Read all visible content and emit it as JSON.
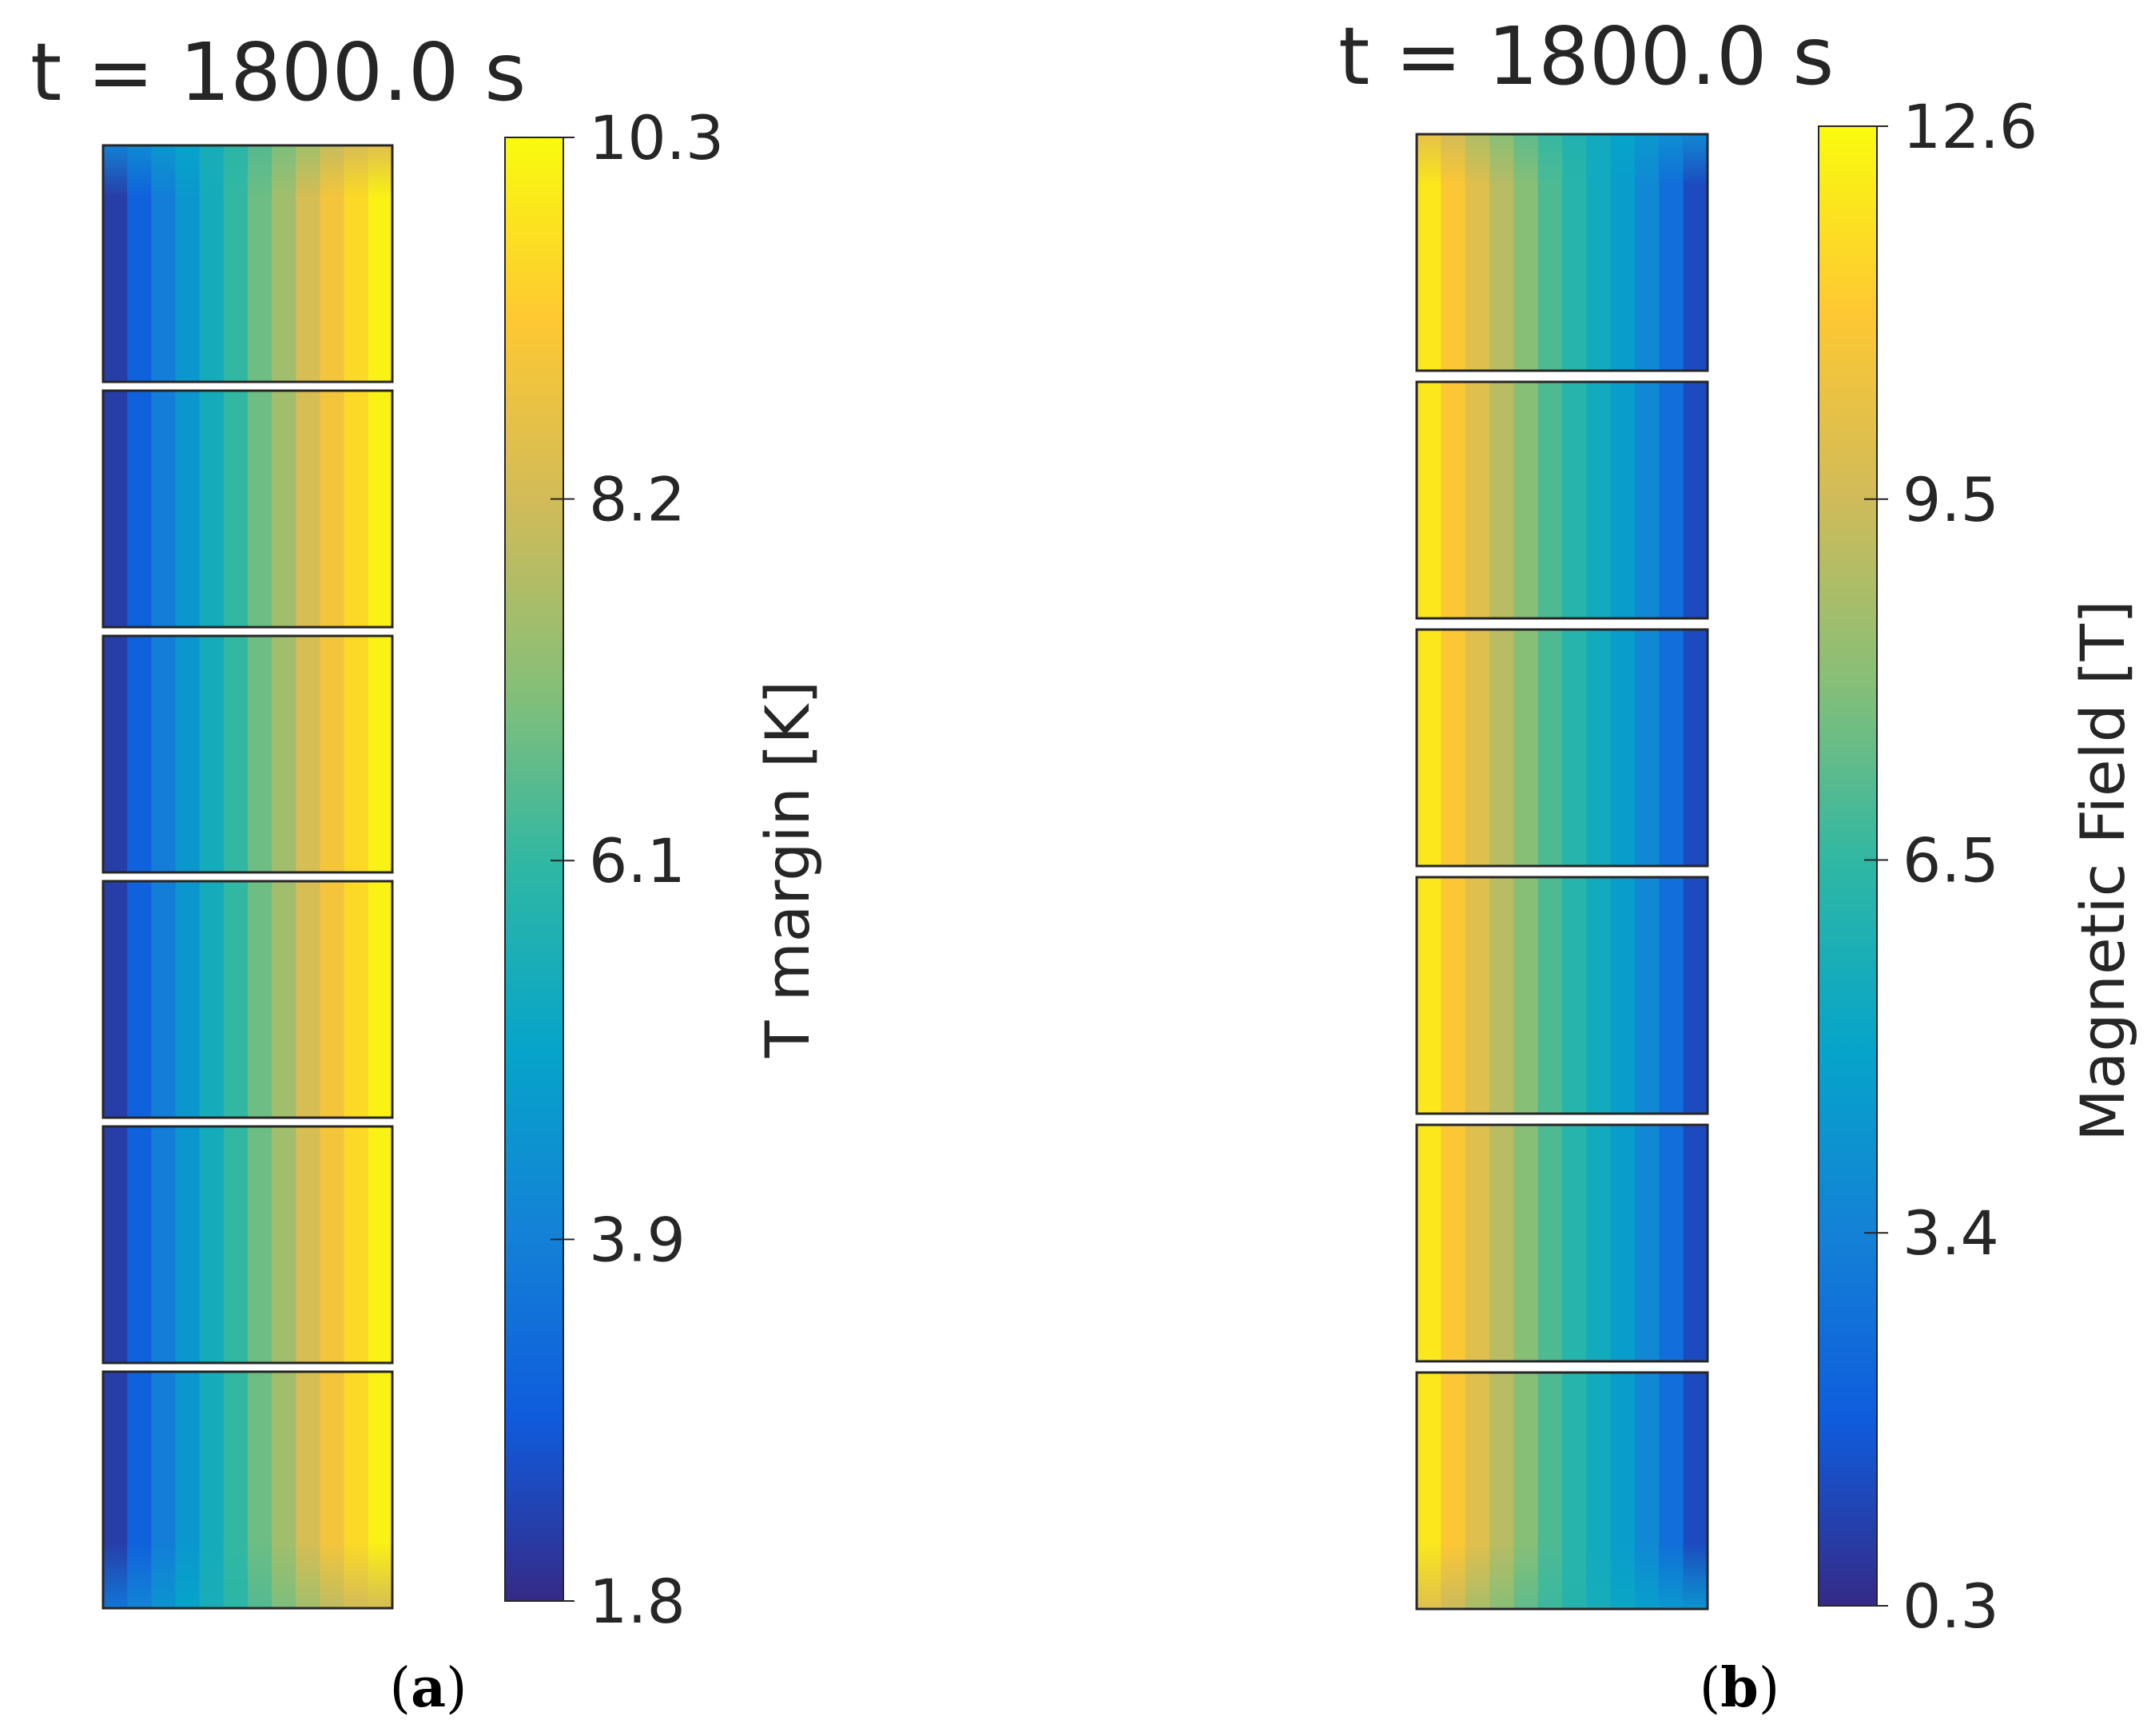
{
  "figure": {
    "panel_a_label": "(a)",
    "panel_b_label": "(b)"
  },
  "chart_data": [
    {
      "type": "heatmap",
      "panel": "a",
      "title": "t = 1800.0 s",
      "colorbar_label": "T margin [K]",
      "clim": [
        1.8,
        10.3
      ],
      "colorbar_ticks": [
        "10.3",
        "8.2",
        "6.1",
        "3.9",
        "1.8"
      ],
      "colorbar_tick_values": [
        10.3,
        8.2,
        6.1,
        3.9,
        1.8
      ],
      "blocks": 6,
      "column_values": [
        2.2,
        3.0,
        3.8,
        4.6,
        5.4,
        6.1,
        6.8,
        7.5,
        8.3,
        9.0,
        9.6,
        10.1
      ],
      "block_edge_values": {
        "top": [
          3.9,
          4.2,
          4.6,
          5.0,
          5.5,
          6.0,
          6.5,
          7.0,
          7.5,
          8.0,
          8.3,
          8.5
        ],
        "bottom": [
          3.6,
          4.0,
          4.5,
          5.0,
          5.5,
          6.0,
          6.5,
          7.0,
          7.5,
          7.9,
          8.2,
          8.3
        ]
      }
    },
    {
      "type": "heatmap",
      "panel": "b",
      "title": "t = 1800.0 s",
      "colorbar_label": "Magnetic Field [T]",
      "clim": [
        0.3,
        12.6
      ],
      "colorbar_ticks": [
        "12.6",
        "9.5",
        "6.5",
        "3.4",
        "0.3"
      ],
      "colorbar_tick_values": [
        12.6,
        9.5,
        6.5,
        3.4,
        0.3
      ],
      "blocks": 6,
      "column_values": [
        12.0,
        11.0,
        10.0,
        9.0,
        8.0,
        7.0,
        6.2,
        5.4,
        4.6,
        3.7,
        2.6,
        1.3
      ],
      "block_edge_values": {
        "top": [
          10.2,
          9.6,
          8.8,
          8.0,
          7.3,
          6.6,
          6.0,
          5.4,
          4.9,
          4.4,
          4.0,
          3.7
        ],
        "bottom": [
          10.0,
          9.4,
          8.7,
          8.0,
          7.3,
          6.7,
          6.1,
          5.6,
          5.1,
          4.7,
          4.4,
          4.2
        ]
      }
    }
  ],
  "colormap": {
    "name": "parula",
    "stops": [
      "#352a87",
      "#0f5cdd",
      "#1481d6",
      "#06a4ca",
      "#2eb7a4",
      "#87bf77",
      "#d1bb59",
      "#fec832",
      "#f9fb0e"
    ]
  }
}
